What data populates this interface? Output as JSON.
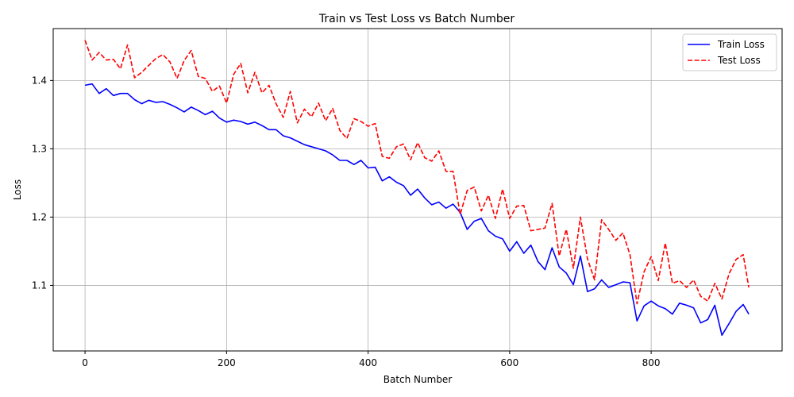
{
  "chart_data": {
    "type": "line",
    "title": "Train vs Test Loss vs Batch Number",
    "xlabel": "Batch Number",
    "ylabel": "Loss",
    "xlim": [
      -45,
      985
    ],
    "ylim": [
      1.004,
      1.476
    ],
    "x_ticks": [
      0,
      200,
      400,
      600,
      800
    ],
    "y_ticks": [
      1.1,
      1.2,
      1.3,
      1.4
    ],
    "grid": true,
    "legend_position": "top-right",
    "x": [
      0,
      10,
      20,
      30,
      40,
      50,
      60,
      70,
      80,
      90,
      100,
      110,
      120,
      130,
      140,
      150,
      160,
      170,
      180,
      190,
      200,
      210,
      220,
      230,
      240,
      250,
      260,
      270,
      280,
      290,
      300,
      310,
      320,
      330,
      340,
      350,
      360,
      370,
      380,
      390,
      400,
      410,
      420,
      430,
      440,
      450,
      460,
      470,
      480,
      490,
      500,
      510,
      520,
      530,
      540,
      550,
      560,
      570,
      580,
      590,
      600,
      610,
      620,
      630,
      640,
      650,
      660,
      670,
      680,
      690,
      700,
      710,
      720,
      730,
      740,
      750,
      760,
      770,
      780,
      790,
      800,
      810,
      820,
      830,
      840,
      850,
      860,
      870,
      880,
      890,
      900,
      910,
      920,
      930,
      938
    ],
    "series": [
      {
        "name": "Train Loss",
        "color": "#0000ff",
        "style": "solid",
        "values": [
          1.393,
          1.395,
          1.381,
          1.388,
          1.378,
          1.381,
          1.381,
          1.372,
          1.366,
          1.371,
          1.368,
          1.369,
          1.365,
          1.36,
          1.354,
          1.361,
          1.356,
          1.35,
          1.355,
          1.345,
          1.339,
          1.342,
          1.34,
          1.336,
          1.339,
          1.334,
          1.328,
          1.328,
          1.319,
          1.316,
          1.311,
          1.306,
          1.303,
          1.3,
          1.297,
          1.291,
          1.283,
          1.283,
          1.277,
          1.283,
          1.272,
          1.273,
          1.253,
          1.259,
          1.251,
          1.246,
          1.232,
          1.241,
          1.228,
          1.218,
          1.222,
          1.213,
          1.219,
          1.207,
          1.182,
          1.194,
          1.198,
          1.18,
          1.172,
          1.168,
          1.15,
          1.164,
          1.147,
          1.159,
          1.135,
          1.123,
          1.155,
          1.127,
          1.118,
          1.101,
          1.143,
          1.091,
          1.095,
          1.108,
          1.097,
          1.101,
          1.105,
          1.104,
          1.048,
          1.07,
          1.077,
          1.07,
          1.066,
          1.058,
          1.074,
          1.071,
          1.067,
          1.045,
          1.05,
          1.071,
          1.027,
          1.044,
          1.062,
          1.072,
          1.058
        ]
      },
      {
        "name": "Test Loss",
        "color": "#ff0000",
        "style": "dashed",
        "values": [
          1.459,
          1.43,
          1.441,
          1.43,
          1.431,
          1.417,
          1.452,
          1.404,
          1.412,
          1.422,
          1.432,
          1.438,
          1.427,
          1.403,
          1.429,
          1.444,
          1.406,
          1.403,
          1.384,
          1.392,
          1.367,
          1.409,
          1.425,
          1.382,
          1.412,
          1.382,
          1.393,
          1.366,
          1.346,
          1.384,
          1.338,
          1.358,
          1.347,
          1.367,
          1.341,
          1.359,
          1.327,
          1.315,
          1.344,
          1.34,
          1.333,
          1.337,
          1.289,
          1.286,
          1.303,
          1.307,
          1.284,
          1.309,
          1.287,
          1.282,
          1.297,
          1.267,
          1.267,
          1.204,
          1.239,
          1.244,
          1.209,
          1.232,
          1.198,
          1.241,
          1.198,
          1.216,
          1.217,
          1.18,
          1.182,
          1.184,
          1.22,
          1.143,
          1.182,
          1.125,
          1.2,
          1.139,
          1.108,
          1.196,
          1.182,
          1.166,
          1.177,
          1.145,
          1.073,
          1.12,
          1.142,
          1.107,
          1.162,
          1.103,
          1.107,
          1.097,
          1.108,
          1.084,
          1.077,
          1.103,
          1.08,
          1.117,
          1.138,
          1.145,
          1.097
        ]
      }
    ]
  }
}
